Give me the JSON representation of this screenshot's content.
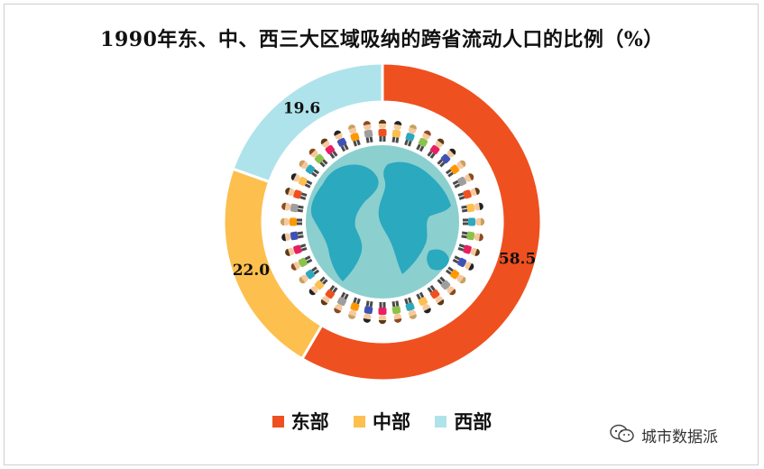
{
  "title": "1990年东、中、西三大区域吸纳的跨省流动人口的比例（%）",
  "chart_data": {
    "type": "pie",
    "variant": "donut",
    "categories": [
      "东部",
      "中部",
      "西部"
    ],
    "values": [
      58.5,
      22.0,
      19.6
    ],
    "value_labels": [
      "58.5",
      "22.0",
      "19.6"
    ],
    "colors": [
      "#ef5020",
      "#fdbf4e",
      "#aee3eb"
    ],
    "legend_position": "bottom-center"
  },
  "legend": [
    {
      "label": "东部",
      "color": "#ef5020"
    },
    {
      "label": "中部",
      "color": "#fdbf4e"
    },
    {
      "label": "西部",
      "color": "#aee3eb"
    }
  ],
  "center_illustration": "globe-with-people-icon",
  "watermark": {
    "text": "城市数据派",
    "icon": "wechat-icon"
  }
}
